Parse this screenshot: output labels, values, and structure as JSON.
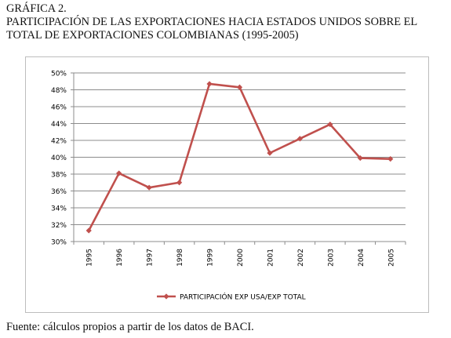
{
  "figure_label": "GRÁFICA 2.",
  "title_line1": "PARTICIPACIÓN DE LAS EXPORTACIONES HACIA ESTADOS UNIDOS SOBRE EL",
  "title_line2": "TOTAL DE EXPORTACIONES COLOMBIANAS (1995-2005)",
  "source": "Fuente: cálculos propios a partir de los datos de BACI.",
  "colors": {
    "series": "#c0504d",
    "grid": "#8c8c8c",
    "axis": "#8c8c8c",
    "text": "#000000"
  },
  "chart_data": {
    "type": "line",
    "title": "",
    "xlabel": "",
    "ylabel": "",
    "categories": [
      "1995",
      "1996",
      "1997",
      "1998",
      "1999",
      "2000",
      "2001",
      "2002",
      "2003",
      "2004",
      "2005"
    ],
    "series": [
      {
        "name": "PARTICIPACIÓN EXP USA/EXP TOTAL",
        "values": [
          31.3,
          38.1,
          36.4,
          37.0,
          48.7,
          48.3,
          40.5,
          42.2,
          43.9,
          39.9,
          39.8
        ]
      }
    ],
    "ylim": [
      30,
      50
    ],
    "yticks": [
      30,
      32,
      34,
      36,
      38,
      40,
      42,
      44,
      46,
      48,
      50
    ],
    "ytick_labels": [
      "30%",
      "32%",
      "34%",
      "36%",
      "38%",
      "40%",
      "42%",
      "44%",
      "46%",
      "48%",
      "50%"
    ],
    "grid": true,
    "marker": "diamond",
    "legend": "bottom-center"
  }
}
